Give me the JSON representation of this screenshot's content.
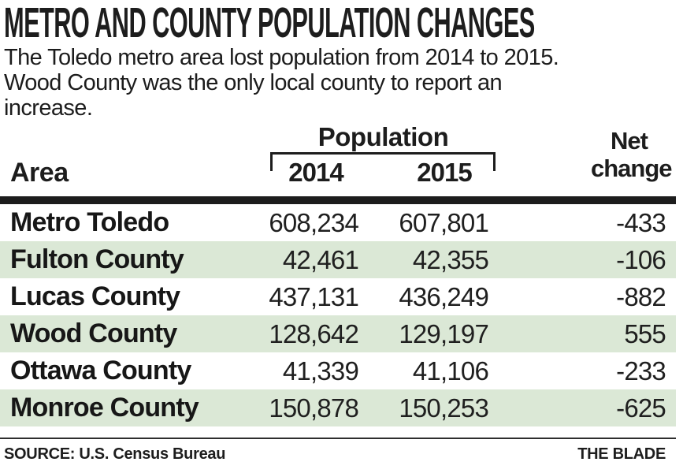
{
  "header": {
    "title": "METRO AND COUNTY POPULATION CHANGES",
    "subtitle_lines": [
      "The Toledo metro area lost population from 2014 to 2015.",
      "Wood County was the only local county to report an",
      "increase."
    ]
  },
  "table": {
    "area_header": "Area",
    "population_group_header": "Population",
    "year_headers": [
      "2014",
      "2015"
    ],
    "net_change_header_lines": [
      "Net",
      "change"
    ],
    "rows": [
      {
        "area": "Metro Toledo",
        "pop_2014": "608,234",
        "pop_2015": "607,801",
        "net_change": "-433",
        "highlight": false
      },
      {
        "area": "Fulton County",
        "pop_2014": "42,461",
        "pop_2015": "42,355",
        "net_change": "-106",
        "highlight": true
      },
      {
        "area": "Lucas County",
        "pop_2014": "437,131",
        "pop_2015": "436,249",
        "net_change": "-882",
        "highlight": false
      },
      {
        "area": "Wood County",
        "pop_2014": "128,642",
        "pop_2015": "129,197",
        "net_change": "555",
        "highlight": true
      },
      {
        "area": "Ottawa County",
        "pop_2014": "41,339",
        "pop_2015": "41,106",
        "net_change": "-233",
        "highlight": false
      },
      {
        "area": "Monroe County",
        "pop_2014": "150,878",
        "pop_2015": "150,253",
        "net_change": "-625",
        "highlight": true
      }
    ]
  },
  "footer": {
    "source": "SOURCE: U.S. Census Bureau",
    "credit": "THE BLADE"
  },
  "colors": {
    "highlight_green": "#dbe8d6",
    "rule_black": "#1d1d1d"
  },
  "chart_data": {
    "type": "table",
    "title": "METRO AND COUNTY POPULATION CHANGES",
    "subtitle": "The Toledo metro area lost population from 2014 to 2015. Wood County was the only local county to report an increase.",
    "columns": [
      "Area",
      "Population 2014",
      "Population 2015",
      "Net change"
    ],
    "rows": [
      [
        "Metro Toledo",
        608234,
        607801,
        -433
      ],
      [
        "Fulton County",
        42461,
        42355,
        -106
      ],
      [
        "Lucas County",
        437131,
        436249,
        -882
      ],
      [
        "Wood County",
        128642,
        129197,
        555
      ],
      [
        "Ottawa County",
        41339,
        41106,
        -233
      ],
      [
        "Monroe County",
        150878,
        150253,
        -625
      ]
    ],
    "highlighted_rows": [
      "Fulton County",
      "Wood County",
      "Monroe County"
    ],
    "source": "SOURCE: U.S. Census Bureau",
    "credit": "THE BLADE"
  }
}
